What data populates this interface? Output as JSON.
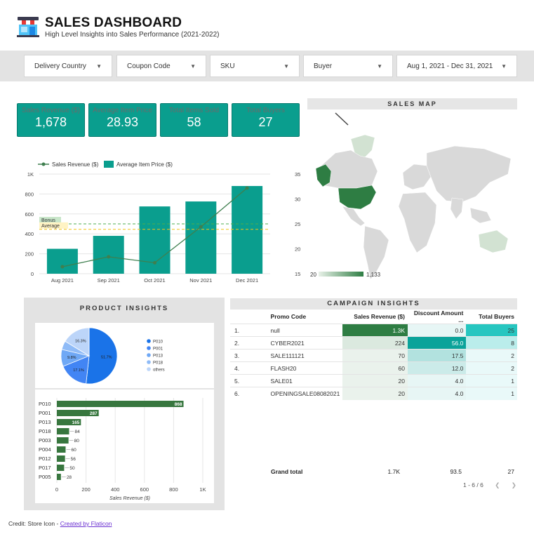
{
  "header": {
    "title": "SALES DASHBOARD",
    "subtitle": "High Level Insights into Sales Performance (2021-2022)",
    "logo_icon": "store-icon"
  },
  "filters": [
    {
      "label": "Delivery Country"
    },
    {
      "label": "Coupon Code"
    },
    {
      "label": "SKU"
    },
    {
      "label": "Buyer"
    },
    {
      "label": "Aug 1, 2021 - Dec 31, 2021"
    }
  ],
  "kpis": [
    {
      "label": "Sales Revenue ($)",
      "value": "1,678"
    },
    {
      "label": "Average Item Price",
      "value": "28.93"
    },
    {
      "label": "Total Items Sold",
      "value": "58"
    },
    {
      "label": "Total Buyers",
      "value": "27"
    }
  ],
  "sales_map": {
    "title": "SALES MAP",
    "legend_min": "20",
    "legend_max": "1,133",
    "highlight_color": "#2e7d43"
  },
  "combo_chart": {
    "legend_line": "Sales Revenue ($)",
    "legend_bar": "Average Item Price ($)",
    "bonus_label": "Bonus",
    "average_label": "Average"
  },
  "chart_data": [
    {
      "type": "bar",
      "categories": [
        "Aug 2021",
        "Sep 2021",
        "Oct 2021",
        "Nov 2021",
        "Dec 2021"
      ],
      "series": [
        {
          "name": "Sales Revenue ($)",
          "type": "line",
          "axis": "left",
          "values": [
            70,
            170,
            110,
            470,
            860
          ]
        },
        {
          "name": "Average Item Price ($)",
          "type": "bar",
          "axis": "right",
          "values": [
            20,
            22.6,
            28.5,
            29.5,
            32.6
          ]
        }
      ],
      "left_axis": {
        "ticks": [
          "0",
          "200",
          "400",
          "600",
          "800",
          "1K"
        ],
        "range": [
          0,
          1000
        ]
      },
      "right_axis": {
        "ticks": [
          "15",
          "20",
          "25",
          "30",
          "35"
        ],
        "range": [
          15,
          35
        ]
      },
      "reference_lines": [
        {
          "label": "Bonus",
          "axis": "right",
          "value": 25,
          "color": "#4caf50"
        },
        {
          "label": "Average",
          "axis": "right",
          "value": 23.9,
          "color": "#f0c419"
        }
      ],
      "colors": {
        "bar": "#0a9e8e",
        "line": "#3f7f4f"
      }
    },
    {
      "type": "pie",
      "labels": [
        "P010",
        "P001",
        "P013",
        "P018",
        "others"
      ],
      "values": [
        51.7,
        17.1,
        9.8,
        5.0,
        16.3
      ],
      "slice_labels": [
        "51.7%",
        "17.1%",
        "9.8%",
        "",
        "16.3%"
      ],
      "colors": [
        "#1a73e8",
        "#4285f4",
        "#6fa8f5",
        "#8fbbf7",
        "#bcd5f9"
      ]
    },
    {
      "type": "bar",
      "orientation": "horizontal",
      "categories": [
        "P010",
        "P001",
        "P013",
        "P018",
        "P003",
        "P004",
        "P012",
        "P017",
        "P005"
      ],
      "values": [
        868,
        287,
        165,
        84,
        80,
        60,
        56,
        50,
        28
      ],
      "value_labels": [
        "868",
        "287",
        "165",
        "84",
        "80",
        "60",
        "56",
        "50",
        "28"
      ],
      "xlabel": "Sales Revenue ($)",
      "x_ticks": [
        "0",
        "200",
        "400",
        "600",
        "800",
        "1K"
      ],
      "xlim": [
        0,
        1000
      ],
      "color": "#38773f"
    }
  ],
  "product_insights": {
    "title": "PRODUCT INSIGHTS"
  },
  "campaign": {
    "title": "CAMPAIGN INSIGHTS",
    "columns": [
      "Promo Code",
      "Sales Revenue ($)",
      "Discount Amount ...",
      "Total Buyers"
    ],
    "rows": [
      {
        "idx": "1.",
        "code": "null",
        "revenue": "1.3K",
        "discount": "0.0",
        "buyers": "25"
      },
      {
        "idx": "2.",
        "code": "CYBER2021",
        "revenue": "224",
        "discount": "56.0",
        "buyers": "8"
      },
      {
        "idx": "3.",
        "code": "SALE111121",
        "revenue": "70",
        "discount": "17.5",
        "buyers": "2"
      },
      {
        "idx": "4.",
        "code": "FLASH20",
        "revenue": "60",
        "discount": "12.0",
        "buyers": "2"
      },
      {
        "idx": "5.",
        "code": "SALE01",
        "revenue": "20",
        "discount": "4.0",
        "buyers": "1"
      },
      {
        "idx": "6.",
        "code": "OPENINGSALE08082021",
        "revenue": "20",
        "discount": "4.0",
        "buyers": "1"
      }
    ],
    "revenue_values": [
      1300,
      224,
      70,
      60,
      20,
      20
    ],
    "discount_values": [
      0,
      56,
      17.5,
      12,
      4,
      4
    ],
    "buyer_values": [
      25,
      8,
      2,
      2,
      1,
      1
    ],
    "grand_total": {
      "label": "Grand total",
      "revenue": "1.7K",
      "discount": "93.5",
      "buyers": "27"
    },
    "pager": "1 - 6 / 6"
  },
  "credit": {
    "text": "Credit: Store Icon - ",
    "link": "Created by Flaticon"
  }
}
